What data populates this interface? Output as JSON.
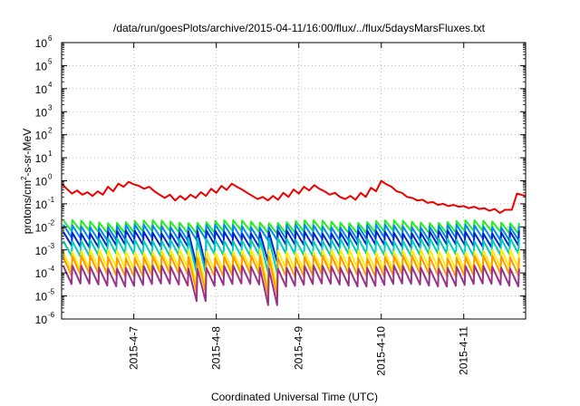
{
  "chart_data": {
    "type": "line",
    "title": "/data/run/goesPlots/archive/2015-04-11/16:00/flux/../flux/5daysMarsFluxes.txt",
    "xlabel": "Coordinated Universal Time (UTC)",
    "ylabel": {
      "base": "protons/cm",
      "sup": "2",
      "rest": "-s-sr-MeV"
    },
    "x_domain": [
      "2015-04-06 03:00",
      "2015-04-11 18:00"
    ],
    "x_ticks": [
      {
        "t": "2015-04-07 00:00",
        "label": "2015-4-7"
      },
      {
        "t": "2015-04-08 00:00",
        "label": "2015-4-8"
      },
      {
        "t": "2015-04-09 00:00",
        "label": "2015-4-9"
      },
      {
        "t": "2015-04-10 00:00",
        "label": "2015-4-10"
      },
      {
        "t": "2015-04-11 00:00",
        "label": "2015-4-11"
      }
    ],
    "y_scale": "log",
    "ylim": [
      1e-06,
      1000000.0
    ],
    "y_ticks": [
      {
        "base": "10",
        "exp": "-6",
        "v": 1e-06
      },
      {
        "base": "10",
        "exp": "-5",
        "v": 1e-05
      },
      {
        "base": "10",
        "exp": "-4",
        "v": 0.0001
      },
      {
        "base": "10",
        "exp": "-3",
        "v": 0.001
      },
      {
        "base": "10",
        "exp": "-2",
        "v": 0.01
      },
      {
        "base": "10",
        "exp": "-1",
        "v": 0.1
      },
      {
        "base": "10",
        "exp": "0",
        "v": 1.0
      },
      {
        "base": "10",
        "exp": "1",
        "v": 10.0
      },
      {
        "base": "10",
        "exp": "2",
        "v": 100.0
      },
      {
        "base": "10",
        "exp": "3",
        "v": 1000.0
      },
      {
        "base": "10",
        "exp": "4",
        "v": 10000.0
      },
      {
        "base": "10",
        "exp": "5",
        "v": 100000.0
      },
      {
        "base": "10",
        "exp": "6",
        "v": 1000000.0
      }
    ],
    "grid": true,
    "series": [
      {
        "color": "#ee0000",
        "points": [
          [
            "2015-04-06 03:00",
            0.75
          ],
          [
            "2015-04-06 04:30",
            0.45
          ],
          [
            "2015-04-06 06:00",
            0.28
          ],
          [
            "2015-04-06 07:30",
            0.38
          ],
          [
            "2015-04-06 09:00",
            0.25
          ],
          [
            "2015-04-06 10:30",
            0.32
          ],
          [
            "2015-04-06 12:00",
            0.22
          ],
          [
            "2015-04-06 13:30",
            0.35
          ],
          [
            "2015-04-06 15:00",
            0.25
          ],
          [
            "2015-04-06 16:30",
            0.55
          ],
          [
            "2015-04-06 18:00",
            0.35
          ],
          [
            "2015-04-06 19:30",
            0.75
          ],
          [
            "2015-04-06 21:00",
            0.55
          ],
          [
            "2015-04-06 22:30",
            0.9
          ],
          [
            "2015-04-07 00:00",
            0.7
          ],
          [
            "2015-04-07 01:30",
            0.6
          ],
          [
            "2015-04-07 03:00",
            0.45
          ],
          [
            "2015-04-07 04:30",
            0.55
          ],
          [
            "2015-04-07 06:00",
            0.35
          ],
          [
            "2015-04-07 07:30",
            0.25
          ],
          [
            "2015-04-07 09:00",
            0.18
          ],
          [
            "2015-04-07 10:30",
            0.25
          ],
          [
            "2015-04-07 12:00",
            0.14
          ],
          [
            "2015-04-07 13:30",
            0.22
          ],
          [
            "2015-04-07 15:00",
            0.15
          ],
          [
            "2015-04-07 16:30",
            0.25
          ],
          [
            "2015-04-07 18:00",
            0.18
          ],
          [
            "2015-04-07 19:30",
            0.32
          ],
          [
            "2015-04-07 21:00",
            0.22
          ],
          [
            "2015-04-07 22:30",
            0.45
          ],
          [
            "2015-04-08 00:00",
            0.3
          ],
          [
            "2015-04-08 01:30",
            0.6
          ],
          [
            "2015-04-08 03:00",
            0.4
          ],
          [
            "2015-04-08 04:30",
            0.75
          ],
          [
            "2015-04-08 06:00",
            0.55
          ],
          [
            "2015-04-08 07:30",
            0.42
          ],
          [
            "2015-04-08 09:00",
            0.3
          ],
          [
            "2015-04-08 10:30",
            0.22
          ],
          [
            "2015-04-08 12:00",
            0.16
          ],
          [
            "2015-04-08 13:30",
            0.2
          ],
          [
            "2015-04-08 15:00",
            0.14
          ],
          [
            "2015-04-08 16:30",
            0.22
          ],
          [
            "2015-04-08 18:00",
            0.15
          ],
          [
            "2015-04-08 19:30",
            0.3
          ],
          [
            "2015-04-08 21:00",
            0.2
          ],
          [
            "2015-04-08 22:30",
            0.42
          ],
          [
            "2015-04-09 00:00",
            0.28
          ],
          [
            "2015-04-09 01:30",
            0.55
          ],
          [
            "2015-04-09 03:00",
            0.38
          ],
          [
            "2015-04-09 04:30",
            0.65
          ],
          [
            "2015-04-09 06:00",
            0.45
          ],
          [
            "2015-04-09 07:30",
            0.35
          ],
          [
            "2015-04-09 09:00",
            0.25
          ],
          [
            "2015-04-09 10:30",
            0.3
          ],
          [
            "2015-04-09 12:00",
            0.2
          ],
          [
            "2015-04-09 13:30",
            0.16
          ],
          [
            "2015-04-09 15:00",
            0.22
          ],
          [
            "2015-04-09 16:30",
            0.15
          ],
          [
            "2015-04-09 18:00",
            0.3
          ],
          [
            "2015-04-09 19:30",
            0.2
          ],
          [
            "2015-04-09 21:00",
            0.5
          ],
          [
            "2015-04-09 22:30",
            0.35
          ],
          [
            "2015-04-10 00:00",
            1.0
          ],
          [
            "2015-04-10 01:30",
            0.7
          ],
          [
            "2015-04-10 03:00",
            0.55
          ],
          [
            "2015-04-10 04:30",
            0.35
          ],
          [
            "2015-04-10 06:00",
            0.3
          ],
          [
            "2015-04-10 07:30",
            0.2
          ],
          [
            "2015-04-10 09:00",
            0.18
          ],
          [
            "2015-04-10 10:30",
            0.14
          ],
          [
            "2015-04-10 12:00",
            0.15
          ],
          [
            "2015-04-10 13:30",
            0.11
          ],
          [
            "2015-04-10 15:00",
            0.12
          ],
          [
            "2015-04-10 16:30",
            0.09
          ],
          [
            "2015-04-10 18:00",
            0.1
          ],
          [
            "2015-04-10 19:30",
            0.08
          ],
          [
            "2015-04-10 21:00",
            0.09
          ],
          [
            "2015-04-10 22:30",
            0.075
          ],
          [
            "2015-04-11 00:00",
            0.08
          ],
          [
            "2015-04-11 01:30",
            0.065
          ],
          [
            "2015-04-11 03:00",
            0.075
          ],
          [
            "2015-04-11 04:30",
            0.06
          ],
          [
            "2015-04-11 06:00",
            0.065
          ],
          [
            "2015-04-11 07:30",
            0.05
          ],
          [
            "2015-04-11 09:00",
            0.06
          ],
          [
            "2015-04-11 10:30",
            0.04
          ],
          [
            "2015-04-11 12:00",
            0.055
          ],
          [
            "2015-04-11 14:00",
            0.055
          ],
          [
            "2015-04-11 15:30",
            0.28
          ],
          [
            "2015-04-11 18:00",
            0.22
          ]
        ]
      },
      {
        "color": "#22ee22",
        "pattern": {
          "peak": 0.017,
          "trough": 0.006,
          "start": "2015-04-06 03:30",
          "period_hours": 2.6
        },
        "dips": []
      },
      {
        "color": "#0088ee",
        "pattern": {
          "peak": 0.011,
          "trough": 0.003,
          "start": "2015-04-06 03:30",
          "period_hours": 2.6
        },
        "dips": []
      },
      {
        "color": "#0022cc",
        "pattern": {
          "peak": 0.006,
          "trough": 0.0015,
          "start": "2015-04-06 03:30",
          "period_hours": 2.6
        },
        "dips": [
          {
            "t": "2015-04-07 19:30",
            "v": 0.0002
          },
          {
            "t": "2015-04-08 17:00",
            "v": 0.0003
          }
        ]
      },
      {
        "color": "#00ccbb",
        "pattern": {
          "peak": 0.0028,
          "trough": 0.0006,
          "start": "2015-04-06 03:30",
          "period_hours": 2.6
        },
        "dips": [
          {
            "t": "2015-04-07 19:30",
            "v": 0.0001
          },
          {
            "t": "2015-04-08 17:00",
            "v": 0.0001
          }
        ]
      },
      {
        "color": "#ffee00",
        "pattern": {
          "peak": 0.0009,
          "trough": 0.00015,
          "start": "2015-04-06 03:30",
          "period_hours": 2.6
        },
        "dips": [
          {
            "t": "2015-04-07 19:30",
            "v": 3e-05
          },
          {
            "t": "2015-04-08 17:00",
            "v": 2e-05
          }
        ]
      },
      {
        "color": "#ff9900",
        "pattern": {
          "peak": 0.0005,
          "trough": 8e-05,
          "start": "2015-04-06 03:30",
          "period_hours": 2.6
        },
        "dips": [
          {
            "t": "2015-04-07 19:30",
            "v": 1.5e-05
          },
          {
            "t": "2015-04-08 17:00",
            "v": 1e-05
          }
        ]
      },
      {
        "color": "#993388",
        "pattern": {
          "peak": 0.00018,
          "trough": 3e-05,
          "start": "2015-04-06 03:30",
          "period_hours": 2.6
        },
        "dips": [
          {
            "t": "2015-04-07 19:30",
            "v": 6e-06
          },
          {
            "t": "2015-04-08 17:00",
            "v": 4e-06
          }
        ]
      }
    ]
  }
}
